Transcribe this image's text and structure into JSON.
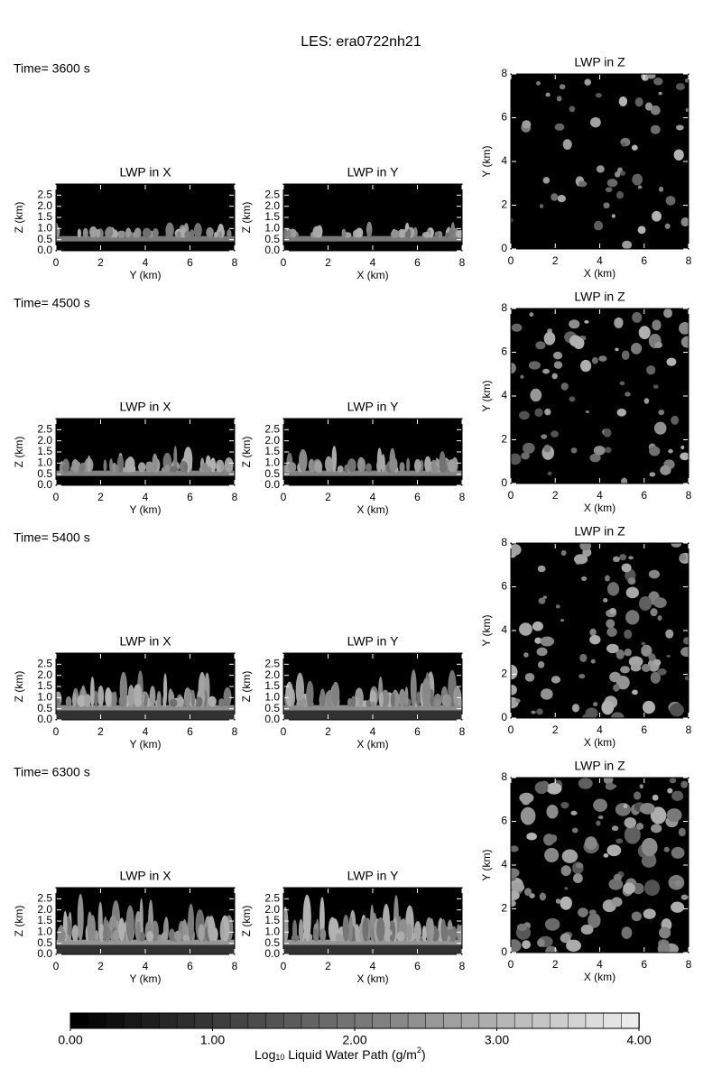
{
  "title": "LES: era0722nh21",
  "times": [
    "Time= 3600 s",
    "Time= 4500 s",
    "Time= 5400 s",
    "Time= 6300 s"
  ],
  "panels": [
    {
      "title": "LWP in X",
      "xlabel": "Y (km)",
      "ylabel": "Z (km)",
      "xlim": [
        0,
        8
      ],
      "xticks": [
        0,
        2,
        4,
        6,
        8
      ],
      "ylim": [
        0,
        3
      ],
      "yticks": [
        {
          "value": 0,
          "label": "0.0"
        },
        {
          "value": 0.5,
          "label": "0.5"
        },
        {
          "value": 1,
          "label": "1.0"
        },
        {
          "value": 1.5,
          "label": "1.5"
        },
        {
          "value": 2,
          "label": "2.0"
        },
        {
          "value": 2.5,
          "label": "2.5"
        }
      ]
    },
    {
      "title": "LWP in Y",
      "xlabel": "X (km)",
      "ylabel": "Z (km)",
      "xlim": [
        0,
        8
      ],
      "xticks": [
        0,
        2,
        4,
        6,
        8
      ],
      "ylim": [
        0,
        3
      ],
      "yticks": [
        {
          "value": 0,
          "label": "0.0"
        },
        {
          "value": 0.5,
          "label": "0.5"
        },
        {
          "value": 1,
          "label": "1.0"
        },
        {
          "value": 1.5,
          "label": "1.5"
        },
        {
          "value": 2,
          "label": "2.0"
        },
        {
          "value": 2.5,
          "label": "2.5"
        }
      ]
    },
    {
      "title": "LWP in Z",
      "xlabel": "X (km)",
      "ylabel": "Y (km)",
      "xlim": [
        0,
        8
      ],
      "xticks": [
        0,
        2,
        4,
        6,
        8
      ],
      "ylim": [
        0,
        8
      ],
      "yticks": [
        0,
        2,
        4,
        6,
        8
      ]
    }
  ],
  "colorbar": {
    "lim": [
      0,
      4
    ],
    "ticks": [
      {
        "value": 0,
        "label": "0.00"
      },
      {
        "value": 1,
        "label": "1.00"
      },
      {
        "value": 2,
        "label": "2.00"
      },
      {
        "value": 3,
        "label": "3.00"
      },
      {
        "value": 4,
        "label": "4.00"
      }
    ],
    "label": [
      "Log",
      "10",
      " Liquid Water Path (g/m",
      "2",
      ")"
    ]
  }
}
